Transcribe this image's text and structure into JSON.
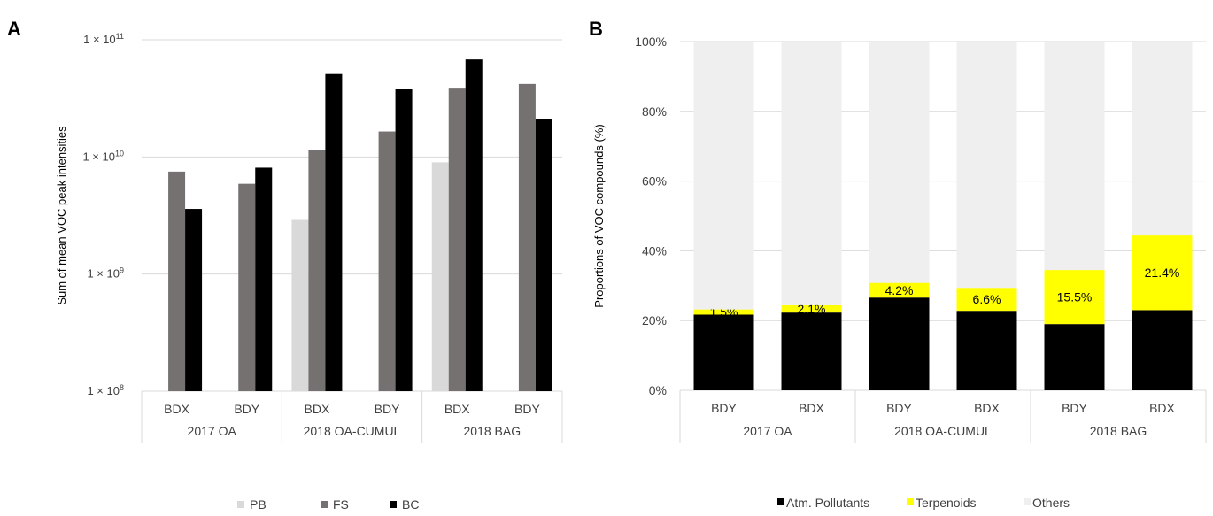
{
  "panels": {
    "a": {
      "letter": "A"
    },
    "b": {
      "letter": "B"
    }
  },
  "chart_data": [
    {
      "id": "panel-a",
      "type": "bar",
      "ylabel": "Sum of mean VOC peak intensities",
      "yscale": "log",
      "ylim": [
        100000000,
        100000000000
      ],
      "yticks": [
        {
          "value": 100000000,
          "base": "1 × 10",
          "exp": "8"
        },
        {
          "value": 1000000000,
          "base": "1 × 10",
          "exp": "9"
        },
        {
          "value": 10000000000,
          "base": "1 × 10",
          "exp": "10"
        },
        {
          "value": 100000000000,
          "base": "1 × 10",
          "exp": "11"
        }
      ],
      "grid": true,
      "groups": [
        "2017 OA",
        "2018 OA-CUMUL",
        "2018 BAG"
      ],
      "categories": [
        "BDX",
        "BDY",
        "BDX",
        "BDY",
        "BDX",
        "BDY"
      ],
      "series": [
        {
          "name": "PB",
          "color": "#d9d9d9",
          "values": [
            null,
            null,
            2900000000,
            null,
            9000000000,
            null
          ]
        },
        {
          "name": "FS",
          "color": "#767171",
          "values": [
            7500000000,
            5900000000,
            11500000000,
            16500000000,
            39000000000,
            42000000000
          ]
        },
        {
          "name": "BC",
          "color": "#000000",
          "values": [
            3600000000,
            8100000000,
            51000000000,
            38000000000,
            68000000000,
            21000000000
          ]
        }
      ],
      "legend_position": "bottom"
    },
    {
      "id": "panel-b",
      "type": "bar",
      "stacked": true,
      "ylabel": "Proportions of VOC compounds (%)",
      "ylim": [
        0,
        100
      ],
      "yticks": [
        "0%",
        "20%",
        "40%",
        "60%",
        "80%",
        "100%"
      ],
      "grid": true,
      "groups": [
        "2017 OA",
        "2018 OA-CUMUL",
        "2018 BAG"
      ],
      "categories": [
        "BDY",
        "BDX",
        "BDY",
        "BDX",
        "BDY",
        "BDX"
      ],
      "series": [
        {
          "name": "Atm. Pollutants",
          "color": "#000000",
          "values": [
            21.7,
            22.3,
            26.6,
            22.8,
            19.0,
            23.0
          ]
        },
        {
          "name": "Terpenoids",
          "color": "#ffff00",
          "values": [
            1.5,
            2.1,
            4.2,
            6.6,
            15.5,
            21.4
          ]
        },
        {
          "name": "Others",
          "color": "#efefef",
          "values": [
            76.8,
            75.6,
            69.2,
            70.6,
            65.5,
            55.6
          ]
        }
      ],
      "data_labels": [
        "1.5%",
        "2.1%",
        "4.2%",
        "6.6%",
        "15.5%",
        "21.4%"
      ],
      "legend_position": "bottom"
    }
  ]
}
